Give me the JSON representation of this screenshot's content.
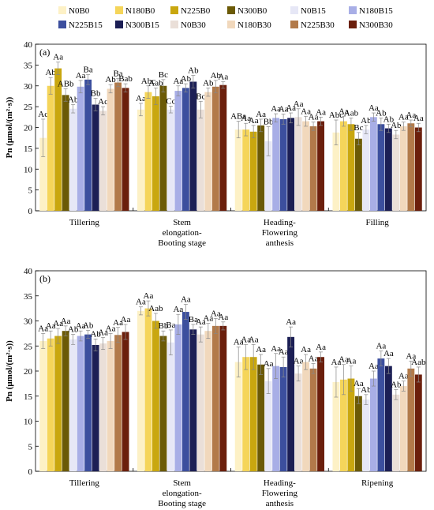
{
  "legend": [
    {
      "name": "N0B0",
      "color": "#fdf1c6"
    },
    {
      "name": "N180B0",
      "color": "#f5d55a"
    },
    {
      "name": "N225B0",
      "color": "#c9a70f"
    },
    {
      "name": "N300B0",
      "color": "#6b5a06"
    },
    {
      "name": "N0B15",
      "color": "#e6e7f6"
    },
    {
      "name": "N180B15",
      "color": "#a8aee6"
    },
    {
      "name": "N225B15",
      "color": "#3c4f9e"
    },
    {
      "name": "N300B15",
      "color": "#1c1f55"
    },
    {
      "name": "N0B30",
      "color": "#eadfd8"
    },
    {
      "name": "N180B30",
      "color": "#f1d8bc"
    },
    {
      "name": "N225B30",
      "color": "#b27a4a"
    },
    {
      "name": "N300B30",
      "color": "#6b1f0c"
    }
  ],
  "chart_data": [
    {
      "type": "bar",
      "panel_label": "(a)",
      "ylabel": "Pn (μmol/(m²·s))",
      "ylim": [
        0,
        40
      ],
      "yticks": [
        0,
        5,
        10,
        15,
        20,
        25,
        30,
        35,
        40
      ],
      "categories": [
        "Tillering",
        "Stem elongation-Booting stage",
        "Heading-Flowering anthesis",
        "Filling"
      ],
      "category_labels": [
        [
          "Tillering"
        ],
        [
          "Stem",
          "elongation-",
          "Booting stage"
        ],
        [
          "Heading-",
          "Flowering",
          "anthesis"
        ],
        [
          "Filling"
        ]
      ],
      "series": [
        {
          "name": "N0B0",
          "color": "#fdf1c6",
          "values": [
            17.5,
            24.3,
            19.5,
            18.8
          ],
          "errors": [
            4.5,
            1.5,
            2.0,
            3.0
          ],
          "labels": [
            "Ac",
            "Aa",
            "ABa",
            "Abc"
          ]
        },
        {
          "name": "N180B0",
          "color": "#f5d55a",
          "values": [
            30.0,
            28.5,
            19.5,
            21.5
          ],
          "errors": [
            2.0,
            1.5,
            1.5,
            1.2
          ],
          "labels": [
            "Ab",
            "Abc",
            "Aa",
            "Aa"
          ]
        },
        {
          "name": "N225B0",
          "color": "#c9a70f",
          "values": [
            34.2,
            27.5,
            19.0,
            20.8
          ],
          "errors": [
            1.5,
            2.0,
            1.5,
            1.5
          ],
          "labels": [
            "Aa",
            "Aab",
            "Aa",
            "Aab"
          ]
        },
        {
          "name": "N300B0",
          "color": "#6b5a06",
          "values": [
            27.8,
            30.0,
            20.5,
            17.3
          ],
          "errors": [
            1.5,
            1.5,
            1.5,
            1.5
          ],
          "labels": [
            "ABb",
            "Bc",
            "Aa",
            "Bc"
          ]
        },
        {
          "name": "N0B15",
          "color": "#e6e7f6",
          "values": [
            24.5,
            24.3,
            16.7,
            19.5
          ],
          "errors": [
            1.0,
            0.8,
            3.5,
            1.0
          ],
          "labels": [
            "Ab",
            "Cc",
            "Bb",
            "Ab"
          ]
        },
        {
          "name": "N180B15",
          "color": "#a8aee6",
          "values": [
            29.8,
            28.8,
            22.3,
            22.5
          ],
          "errors": [
            1.5,
            1.2,
            1.0,
            1.0
          ],
          "labels": [
            "Aa",
            "Aa",
            "Aa",
            "Aa"
          ]
        },
        {
          "name": "N225B15",
          "color": "#3c4f9e",
          "values": [
            31.5,
            29.5,
            22.0,
            20.8
          ],
          "errors": [
            1.2,
            1.0,
            1.2,
            1.5
          ],
          "labels": [
            "Ba",
            "Ab",
            "Aa",
            "Ab"
          ]
        },
        {
          "name": "N300B15",
          "color": "#1c1f55",
          "values": [
            25.5,
            31.0,
            22.3,
            19.8
          ],
          "errors": [
            1.5,
            1.5,
            1.2,
            1.0
          ],
          "labels": [
            "Bb",
            "Ab",
            "Aa",
            "Ab"
          ]
        },
        {
          "name": "N0B30",
          "color": "#eadfd8",
          "values": [
            24.0,
            24.3,
            22.5,
            18.3
          ],
          "errors": [
            1.0,
            2.0,
            2.0,
            1.0
          ],
          "labels": [
            "Ac",
            "Bc",
            "Aa",
            "Ab"
          ]
        },
        {
          "name": "N180B30",
          "color": "#f1d8bc",
          "values": [
            29.3,
            28.5,
            21.5,
            20.3
          ],
          "errors": [
            1.0,
            1.0,
            1.2,
            1.0
          ],
          "labels": [
            "Ab",
            "Ab",
            "Aa",
            "Aa"
          ]
        },
        {
          "name": "N225B30",
          "color": "#b27a4a",
          "values": [
            30.8,
            29.8,
            20.3,
            21.0
          ],
          "errors": [
            1.0,
            1.5,
            1.0,
            0.8
          ],
          "labels": [
            "Ba",
            "Ab",
            "Aa",
            "Aa"
          ]
        },
        {
          "name": "N300B30",
          "color": "#6b1f0c",
          "values": [
            29.5,
            30.2,
            21.5,
            20.0
          ],
          "errors": [
            1.0,
            0.8,
            1.0,
            1.0
          ],
          "labels": [
            "Bab",
            "Aa",
            "Aa",
            "Aa"
          ]
        }
      ]
    },
    {
      "type": "bar",
      "panel_label": "(b)",
      "ylabel": "Pn (μmol/(m²·s))",
      "ylim": [
        0,
        40
      ],
      "yticks": [
        0,
        5,
        10,
        15,
        20,
        25,
        30,
        35,
        40
      ],
      "categories": [
        "Tillering",
        "Stem elongation-Booting stage",
        "Heading-Flowering anthesis",
        "Ripening"
      ],
      "category_labels": [
        [
          "Tillering"
        ],
        [
          "Stem",
          "elongation-",
          "Booting stage"
        ],
        [
          "Heading-",
          "Flowering",
          "anthesis"
        ],
        [
          "Ripening"
        ]
      ],
      "series": [
        {
          "name": "N0B0",
          "color": "#fdf1c6",
          "values": [
            26.0,
            32.0,
            21.8,
            17.8
          ],
          "errors": [
            1.5,
            0.8,
            3.0,
            3.0
          ],
          "labels": [
            "Aa",
            "Aa",
            "Aa",
            "Aa"
          ]
        },
        {
          "name": "N180B0",
          "color": "#f5d55a",
          "values": [
            26.5,
            32.5,
            22.8,
            18.3
          ],
          "errors": [
            1.5,
            1.5,
            2.5,
            3.0
          ],
          "labels": [
            "Aa",
            "Aa",
            "Aa",
            "Aa"
          ]
        },
        {
          "name": "N225B0",
          "color": "#c9a70f",
          "values": [
            27.0,
            30.0,
            22.8,
            18.5
          ],
          "errors": [
            1.5,
            1.5,
            2.5,
            2.5
          ],
          "labels": [
            "Aa",
            "Aab",
            "Aa",
            "Aa"
          ]
        },
        {
          "name": "N300B0",
          "color": "#6b5a06",
          "values": [
            28.0,
            27.0,
            21.3,
            15.0
          ],
          "errors": [
            1.0,
            1.0,
            2.0,
            1.5
          ],
          "labels": [
            "Aa",
            "Bb",
            "Aa",
            "Aa"
          ]
        },
        {
          "name": "N0B15",
          "color": "#e6e7f6",
          "values": [
            26.3,
            25.7,
            18.0,
            14.3
          ],
          "errors": [
            1.0,
            2.5,
            2.5,
            1.0
          ],
          "labels": [
            "Ab",
            "Ba",
            "Aa",
            "Ab"
          ]
        },
        {
          "name": "N180B15",
          "color": "#a8aee6",
          "values": [
            27.0,
            29.3,
            21.0,
            18.5
          ],
          "errors": [
            1.0,
            2.0,
            2.5,
            1.5
          ],
          "labels": [
            "Aa",
            "Aa",
            "Aa",
            "Aa"
          ]
        },
        {
          "name": "N225B15",
          "color": "#3c4f9e",
          "values": [
            27.3,
            31.8,
            20.8,
            22.5
          ],
          "errors": [
            0.8,
            1.5,
            2.0,
            1.5
          ],
          "labels": [
            "Ab",
            "Aa",
            "Aa",
            "Aa"
          ]
        },
        {
          "name": "N300B15",
          "color": "#1c1f55",
          "values": [
            25.2,
            28.3,
            26.8,
            21.0
          ],
          "errors": [
            1.2,
            1.0,
            2.0,
            1.5
          ],
          "labels": [
            "Ab",
            "Ba",
            "Aa",
            "Aa"
          ]
        },
        {
          "name": "N0B30",
          "color": "#eadfd8",
          "values": [
            25.5,
            27.3,
            19.5,
            15.3
          ],
          "errors": [
            1.2,
            1.5,
            1.5,
            1.0
          ],
          "labels": [
            "Aa",
            "Aa",
            "Aa",
            "Ab"
          ]
        },
        {
          "name": "N180B30",
          "color": "#f1d8bc",
          "values": [
            26.0,
            28.0,
            21.8,
            17.0
          ],
          "errors": [
            1.5,
            1.5,
            1.5,
            1.0
          ],
          "labels": [
            "Aa",
            "Aa",
            "Aa",
            "Aa"
          ]
        },
        {
          "name": "N225B30",
          "color": "#b27a4a",
          "values": [
            27.2,
            29.0,
            20.5,
            20.5
          ],
          "errors": [
            1.5,
            1.5,
            1.0,
            1.5
          ],
          "labels": [
            "Aa",
            "Aa",
            "Aa",
            "Aa"
          ]
        },
        {
          "name": "N300B30",
          "color": "#6b1f0c",
          "values": [
            27.8,
            29.0,
            22.8,
            19.3
          ],
          "errors": [
            1.5,
            0.8,
            1.0,
            1.5
          ],
          "labels": [
            "Aa",
            "Aa",
            "Aa",
            "Aab"
          ]
        }
      ]
    }
  ]
}
